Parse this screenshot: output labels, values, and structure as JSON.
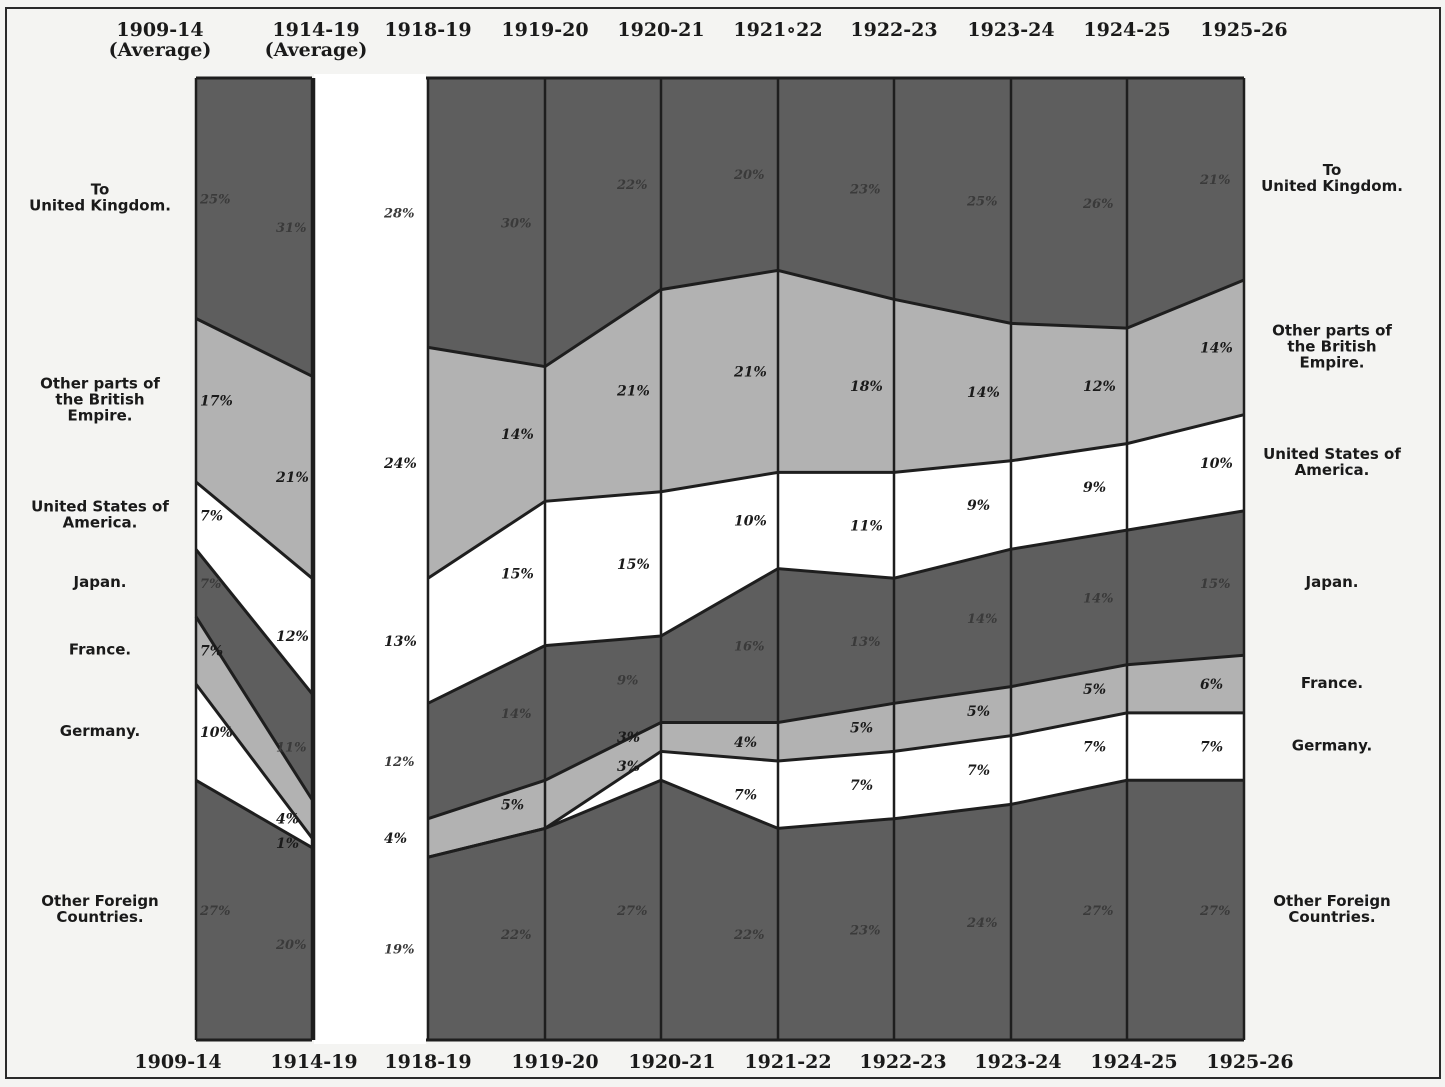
{
  "colors": {
    "background": "#f4f4f2",
    "united_kingdom": "#5e5e5e",
    "other_british_empire": "#b2b2b2",
    "united_states": "#ffffff",
    "japan": "#5e5e5e",
    "france": "#b2b2b2",
    "germany": "#ffffff",
    "other_foreign": "#5e5e5e",
    "lines": "#1e1e1e"
  },
  "chart_data": {
    "type": "area",
    "stacking": "percent",
    "categories": [
      "1909-14",
      "1914-19",
      "1918-19",
      "1919-20",
      "1920-21",
      "1921-22",
      "1922-23",
      "1923-24",
      "1924-25",
      "1925-26"
    ],
    "header_labels": [
      [
        "1909-14",
        "(Average)"
      ],
      [
        "1914-19",
        "(Average)"
      ],
      [
        "1918-19"
      ],
      [
        "1919-20"
      ],
      [
        "1920-21"
      ],
      [
        "1921∘22"
      ],
      [
        "1922-23"
      ],
      [
        "1923-24"
      ],
      [
        "1924-25"
      ],
      [
        "1925-26"
      ]
    ],
    "footer_labels": [
      "1909-14",
      "1914-19",
      "1918-19",
      "1919-20",
      "1920-21",
      "1921-22",
      "1922-23",
      "1923-24",
      "1924-25",
      "1925-26"
    ],
    "series": [
      {
        "name": "Other Foreign Countries",
        "left_label": [
          "Other Foreign",
          "Countries."
        ],
        "right_label": [
          "Other Foreign",
          "Countries."
        ],
        "values": [
          27,
          20,
          19,
          22,
          27,
          22,
          23,
          24,
          27,
          27
        ],
        "labels": [
          "27%",
          "20%",
          "19%",
          "22%",
          "27%",
          "22%",
          "23%",
          "24%",
          "27%",
          "27%"
        ]
      },
      {
        "name": "Germany",
        "left_label": [
          "Germany."
        ],
        "right_label": [
          "Germany."
        ],
        "values": [
          10,
          1,
          0,
          0,
          3,
          7,
          7,
          7,
          7,
          7
        ],
        "labels": [
          "10%",
          "1%",
          "",
          "",
          "3%",
          "7%",
          "7%",
          "7%",
          "7%",
          "7%"
        ]
      },
      {
        "name": "France",
        "left_label": [
          "France."
        ],
        "right_label": [
          "France."
        ],
        "values": [
          7,
          4,
          4,
          5,
          3,
          4,
          5,
          5,
          5,
          6
        ],
        "labels": [
          "7%",
          "4%",
          "4%",
          "5%",
          "3%",
          "4%",
          "5%",
          "5%",
          "5%",
          "6%"
        ]
      },
      {
        "name": "Japan",
        "left_label": [
          "Japan."
        ],
        "right_label": [
          "Japan."
        ],
        "values": [
          7,
          11,
          12,
          14,
          9,
          16,
          13,
          14,
          14,
          15
        ],
        "labels": [
          "7%",
          "11%",
          "12%",
          "14%",
          "9%",
          "16%",
          "13%",
          "14%",
          "14%",
          "15%"
        ]
      },
      {
        "name": "United States of America",
        "left_label": [
          "United States of",
          "America."
        ],
        "right_label": [
          "United States of",
          "America."
        ],
        "values": [
          7,
          12,
          13,
          15,
          15,
          10,
          11,
          9,
          9,
          10
        ],
        "labels": [
          "7%",
          "12%",
          "13%",
          "15%",
          "15%",
          "10%",
          "11%",
          "9%",
          "9%",
          "10%"
        ]
      },
      {
        "name": "Other parts of the British Empire",
        "left_label": [
          "Other parts of",
          "the British",
          "Empire."
        ],
        "right_label": [
          "Other parts of",
          "the British",
          "Empire."
        ],
        "values": [
          17,
          21,
          24,
          14,
          21,
          21,
          18,
          14,
          12,
          14
        ],
        "labels": [
          "17%",
          "21%",
          "24%",
          "14%",
          "21%",
          "21%",
          "18%",
          "14%",
          "12%",
          "14%"
        ]
      },
      {
        "name": "To United Kingdom",
        "left_label": [
          "To",
          "United Kingdom."
        ],
        "right_label": [
          "To",
          "United Kingdom."
        ],
        "values": [
          25,
          31,
          28,
          30,
          22,
          20,
          23,
          25,
          26,
          21
        ],
        "labels": [
          "25%",
          "31%",
          "28%",
          "30%",
          "22%",
          "20%",
          "23%",
          "25%",
          "26%",
          "21%"
        ]
      }
    ],
    "ylim": [
      0,
      100
    ]
  }
}
